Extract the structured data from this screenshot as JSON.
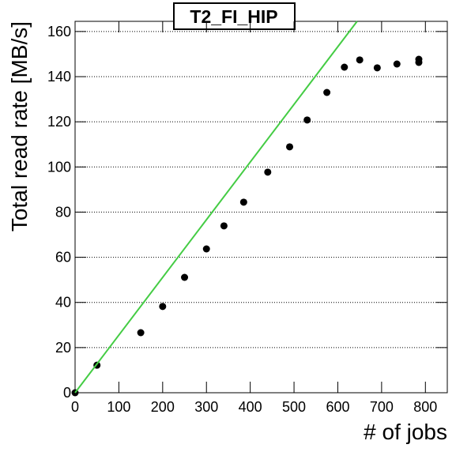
{
  "chart_data": {
    "type": "scatter",
    "title": "T2_FI_HIP",
    "x_label": "# of jobs",
    "y_label": "Total read rate [MB/s]",
    "series": [
      {
        "color": "#000000",
        "x": [
          0,
          50,
          150,
          200,
          250,
          300,
          340,
          385,
          440,
          490,
          530,
          575,
          615,
          650,
          690,
          735,
          785,
          785
        ],
        "values": [
          0,
          12.2,
          26.6,
          38.2,
          51.1,
          63.7,
          73.9,
          84.4,
          97.7,
          108.9,
          120.8,
          133,
          144.2,
          147.4,
          143.9,
          145.6,
          147.7,
          146.3
        ]
      },
      {
        "color": "#44cc44",
        "style": "line",
        "x": [
          0,
          644
        ],
        "values": [
          0,
          164.5
        ]
      }
    ],
    "xlim": [
      0,
      850
    ],
    "ylim": [
      0,
      164.5
    ],
    "xticks": [
      0,
      100,
      200,
      300,
      400,
      500,
      600,
      700,
      800
    ],
    "yticks": [
      0,
      20,
      40,
      60,
      80,
      100,
      120,
      140,
      160
    ],
    "grid": "y"
  }
}
